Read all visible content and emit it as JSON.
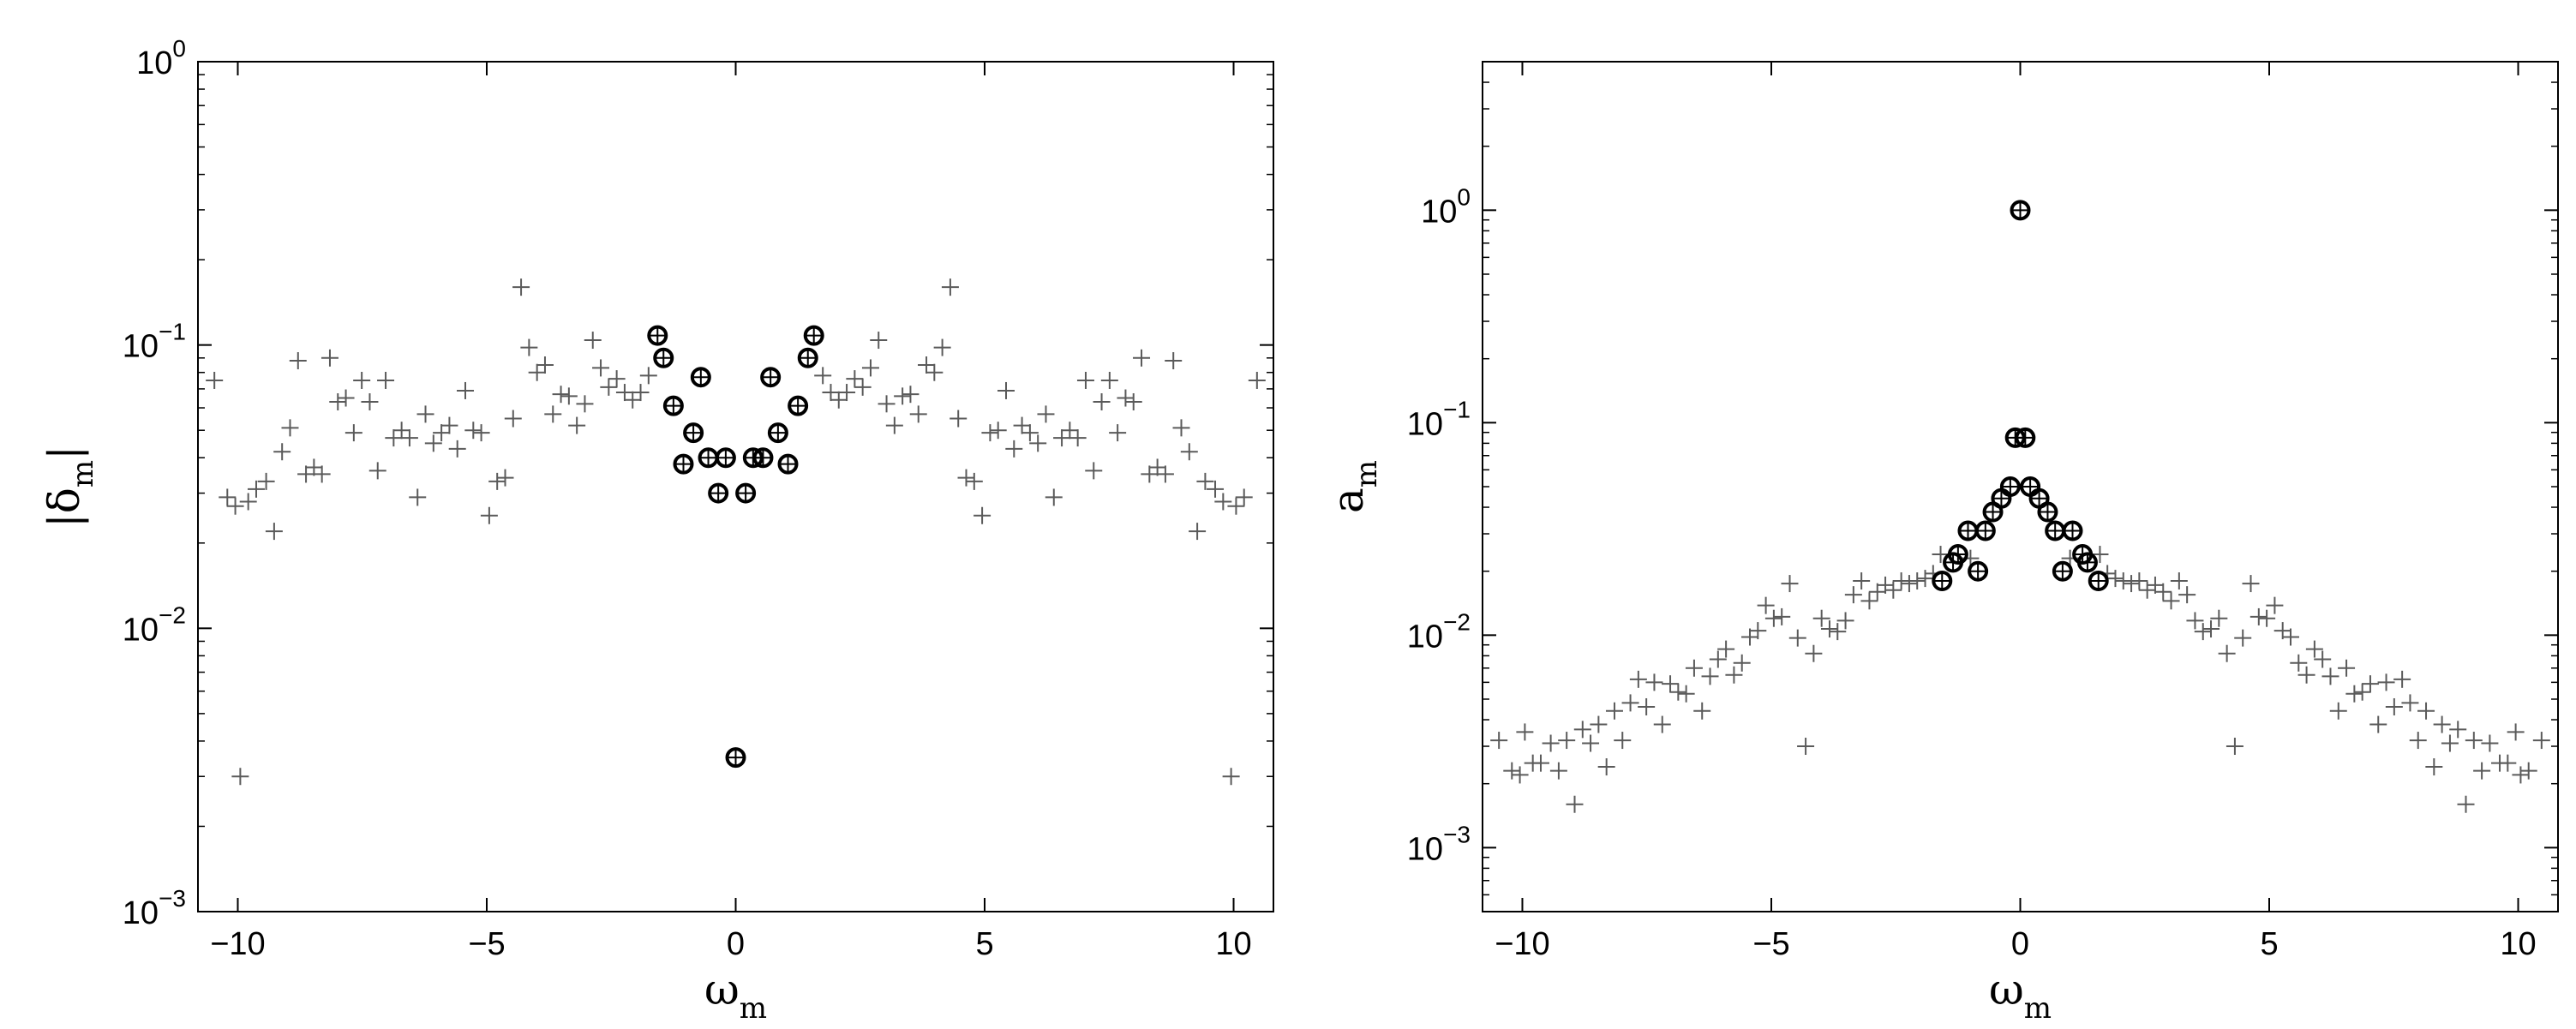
{
  "chart_data": [
    {
      "type": "scatter",
      "scale": {
        "x": "linear",
        "y": "log"
      },
      "xlim": [
        -10.8,
        10.8
      ],
      "ylim": [
        0.001,
        1
      ],
      "xticks": [
        -10,
        -5,
        0,
        5,
        10
      ],
      "xtick_labels": [
        "−10",
        "−5",
        "0",
        "5",
        "10"
      ],
      "yticks": [
        0.001,
        0.01,
        0.1,
        1
      ],
      "ytick_labels": [
        {
          "base": "10",
          "exp": "−3"
        },
        {
          "base": "10",
          "exp": "−2"
        },
        {
          "base": "10",
          "exp": "−1"
        },
        {
          "base": "10",
          "exp": "0"
        }
      ],
      "xlabel": {
        "main": "ω",
        "sub": "m"
      },
      "ylabel": {
        "pre": "|",
        "main": "δ",
        "sub": "m",
        "post": "|"
      },
      "series": [
        {
          "marker": "plus",
          "color": "#5a5a5a",
          "x": [
            -10.47,
            -10.21,
            -10.05,
            -9.95,
            -9.79,
            -9.63,
            -9.43,
            -9.27,
            -9.11,
            -8.95,
            -8.79,
            -8.63,
            -8.47,
            -8.31,
            -8.15,
            -7.99,
            -7.83,
            -7.67,
            -7.51,
            -7.35,
            -7.19,
            -7.03,
            -6.87,
            -6.71,
            -6.55,
            -6.39,
            -6.23,
            -6.07,
            -5.91,
            -5.75,
            -5.59,
            -5.43,
            -5.27,
            -5.11,
            -4.95,
            -4.79,
            -4.63,
            -4.47,
            -4.31,
            -4.15,
            -3.99,
            -3.83,
            -3.67,
            -3.51,
            -3.35,
            -3.19,
            -3.03,
            -2.87,
            -2.71,
            -2.55,
            -2.39,
            -2.23,
            -2.07,
            -1.91,
            -1.75,
            1.75,
            1.91,
            2.07,
            2.23,
            2.39,
            2.55,
            2.71,
            2.87,
            3.03,
            3.19,
            3.35,
            3.51,
            3.67,
            3.83,
            3.99,
            4.15,
            4.31,
            4.47,
            4.63,
            4.79,
            4.95,
            5.11,
            5.27,
            5.43,
            5.59,
            5.75,
            5.91,
            6.07,
            6.23,
            6.39,
            6.55,
            6.71,
            6.87,
            7.03,
            7.19,
            7.35,
            7.51,
            7.67,
            7.83,
            7.99,
            8.15,
            8.31,
            8.47,
            8.63,
            8.79,
            8.95,
            9.11,
            9.27,
            9.43,
            9.63,
            9.79,
            9.95,
            10.05,
            10.21,
            10.47
          ],
          "y": [
            0.075,
            0.029,
            0.027,
            0.003,
            0.028,
            0.031,
            0.033,
            0.022,
            0.042,
            0.051,
            0.088,
            0.035,
            0.037,
            0.035,
            0.09,
            0.063,
            0.065,
            0.049,
            0.075,
            0.063,
            0.036,
            0.075,
            0.047,
            0.05,
            0.047,
            0.029,
            0.057,
            0.045,
            0.049,
            0.052,
            0.043,
            0.069,
            0.05,
            0.049,
            0.025,
            0.033,
            0.034,
            0.055,
            0.16,
            0.098,
            0.08,
            0.085,
            0.057,
            0.067,
            0.066,
            0.052,
            0.062,
            0.104,
            0.083,
            0.071,
            0.076,
            0.068,
            0.064,
            0.068,
            0.078,
            0.078,
            0.068,
            0.064,
            0.068,
            0.076,
            0.071,
            0.083,
            0.104,
            0.062,
            0.052,
            0.066,
            0.067,
            0.057,
            0.085,
            0.08,
            0.098,
            0.16,
            0.055,
            0.034,
            0.033,
            0.025,
            0.049,
            0.05,
            0.069,
            0.043,
            0.052,
            0.049,
            0.045,
            0.057,
            0.029,
            0.047,
            0.05,
            0.047,
            0.075,
            0.036,
            0.063,
            0.075,
            0.049,
            0.065,
            0.063,
            0.09,
            0.035,
            0.037,
            0.035,
            0.088,
            0.051,
            0.042,
            0.022,
            0.033,
            0.031,
            0.028,
            0.003,
            0.027,
            0.029,
            0.075
          ]
        },
        {
          "marker": "circle-plus",
          "color": "#000000",
          "x": [
            -1.57,
            -1.45,
            -1.25,
            -1.05,
            -0.85,
            -0.7,
            -0.55,
            -0.35,
            -0.2,
            0.0,
            0.2,
            0.35,
            0.55,
            0.7,
            0.85,
            1.05,
            1.25,
            1.45,
            1.57
          ],
          "y": [
            0.108,
            0.09,
            0.061,
            0.038,
            0.049,
            0.077,
            0.04,
            0.03,
            0.04,
            0.0035,
            0.03,
            0.04,
            0.04,
            0.077,
            0.049,
            0.038,
            0.061,
            0.09,
            0.108
          ]
        }
      ]
    },
    {
      "type": "scatter",
      "scale": {
        "x": "linear",
        "y": "log"
      },
      "xlim": [
        -10.8,
        10.8
      ],
      "ylim": [
        0.0005,
        5
      ],
      "xticks": [
        -10,
        -5,
        0,
        5,
        10
      ],
      "xtick_labels": [
        "−10",
        "−5",
        "0",
        "5",
        "10"
      ],
      "yticks": [
        0.001,
        0.01,
        0.1,
        1
      ],
      "ytick_labels": [
        {
          "base": "10",
          "exp": "−3"
        },
        {
          "base": "10",
          "exp": "−2"
        },
        {
          "base": "10",
          "exp": "−1"
        },
        {
          "base": "10",
          "exp": "0"
        }
      ],
      "xlabel": {
        "main": "ω",
        "sub": "m"
      },
      "ylabel": {
        "pre": "",
        "main": "a",
        "sub": "m",
        "post": ""
      },
      "series": [
        {
          "marker": "plus",
          "color": "#5a5a5a",
          "x": [
            -10.47,
            -10.21,
            -10.05,
            -9.95,
            -9.79,
            -9.63,
            -9.43,
            -9.27,
            -9.11,
            -8.95,
            -8.79,
            -8.63,
            -8.47,
            -8.31,
            -8.15,
            -7.99,
            -7.83,
            -7.67,
            -7.51,
            -7.35,
            -7.19,
            -7.03,
            -6.87,
            -6.71,
            -6.55,
            -6.39,
            -6.23,
            -6.07,
            -5.91,
            -5.75,
            -5.59,
            -5.43,
            -5.27,
            -5.11,
            -4.95,
            -4.79,
            -4.63,
            -4.47,
            -4.31,
            -4.15,
            -3.99,
            -3.83,
            -3.67,
            -3.51,
            -3.35,
            -3.19,
            -3.03,
            -2.87,
            -2.71,
            -2.55,
            -2.39,
            -2.23,
            -2.07,
            -1.91,
            -1.75,
            -1.6,
            -1.0,
            1.0,
            1.6,
            1.75,
            1.91,
            2.07,
            2.23,
            2.39,
            2.55,
            2.71,
            2.87,
            3.03,
            3.19,
            3.35,
            3.51,
            3.67,
            3.83,
            3.99,
            4.15,
            4.31,
            4.47,
            4.63,
            4.79,
            4.95,
            5.11,
            5.27,
            5.43,
            5.59,
            5.75,
            5.91,
            6.07,
            6.23,
            6.39,
            6.55,
            6.71,
            6.87,
            7.03,
            7.19,
            7.35,
            7.51,
            7.67,
            7.83,
            7.99,
            8.15,
            8.31,
            8.47,
            8.63,
            8.79,
            8.95,
            9.11,
            9.27,
            9.43,
            9.63,
            9.79,
            9.95,
            10.05,
            10.21,
            10.47
          ],
          "y": [
            0.0032,
            0.0023,
            0.0022,
            0.0035,
            0.0025,
            0.0025,
            0.0031,
            0.0023,
            0.0032,
            0.0016,
            0.0036,
            0.0031,
            0.0038,
            0.0024,
            0.0044,
            0.0032,
            0.0048,
            0.0062,
            0.0046,
            0.006,
            0.0038,
            0.0059,
            0.0054,
            0.0053,
            0.007,
            0.0044,
            0.0064,
            0.0077,
            0.0086,
            0.0065,
            0.0074,
            0.0098,
            0.0105,
            0.0138,
            0.012,
            0.0122,
            0.0175,
            0.0097,
            0.003,
            0.0082,
            0.012,
            0.0107,
            0.0104,
            0.0117,
            0.0155,
            0.018,
            0.0145,
            0.016,
            0.0172,
            0.0163,
            0.018,
            0.0175,
            0.018,
            0.0185,
            0.0195,
            0.024,
            0.023,
            0.023,
            0.024,
            0.0195,
            0.0185,
            0.018,
            0.0175,
            0.018,
            0.0163,
            0.0172,
            0.016,
            0.0145,
            0.018,
            0.0155,
            0.0117,
            0.0104,
            0.0107,
            0.012,
            0.0082,
            0.003,
            0.0097,
            0.0175,
            0.0122,
            0.012,
            0.0138,
            0.0105,
            0.0098,
            0.0074,
            0.0065,
            0.0086,
            0.0077,
            0.0064,
            0.0044,
            0.007,
            0.0053,
            0.0054,
            0.0059,
            0.0038,
            0.006,
            0.0046,
            0.0062,
            0.0048,
            0.0032,
            0.0044,
            0.0024,
            0.0038,
            0.0031,
            0.0036,
            0.0016,
            0.0032,
            0.0023,
            0.0031,
            0.0025,
            0.0025,
            0.0035,
            0.0022,
            0.0023,
            0.0032
          ]
        },
        {
          "marker": "circle-plus",
          "color": "#000000",
          "x": [
            -1.57,
            -1.35,
            -1.25,
            -1.05,
            -0.85,
            -0.7,
            -0.55,
            -0.38,
            -0.2,
            -0.1,
            0.0,
            0.1,
            0.2,
            0.38,
            0.55,
            0.7,
            0.85,
            1.05,
            1.25,
            1.35,
            1.57
          ],
          "y": [
            0.018,
            0.022,
            0.024,
            0.031,
            0.02,
            0.031,
            0.038,
            0.044,
            0.05,
            0.085,
            1.0,
            0.085,
            0.05,
            0.044,
            0.038,
            0.031,
            0.02,
            0.031,
            0.024,
            0.022,
            0.018
          ]
        }
      ]
    }
  ]
}
